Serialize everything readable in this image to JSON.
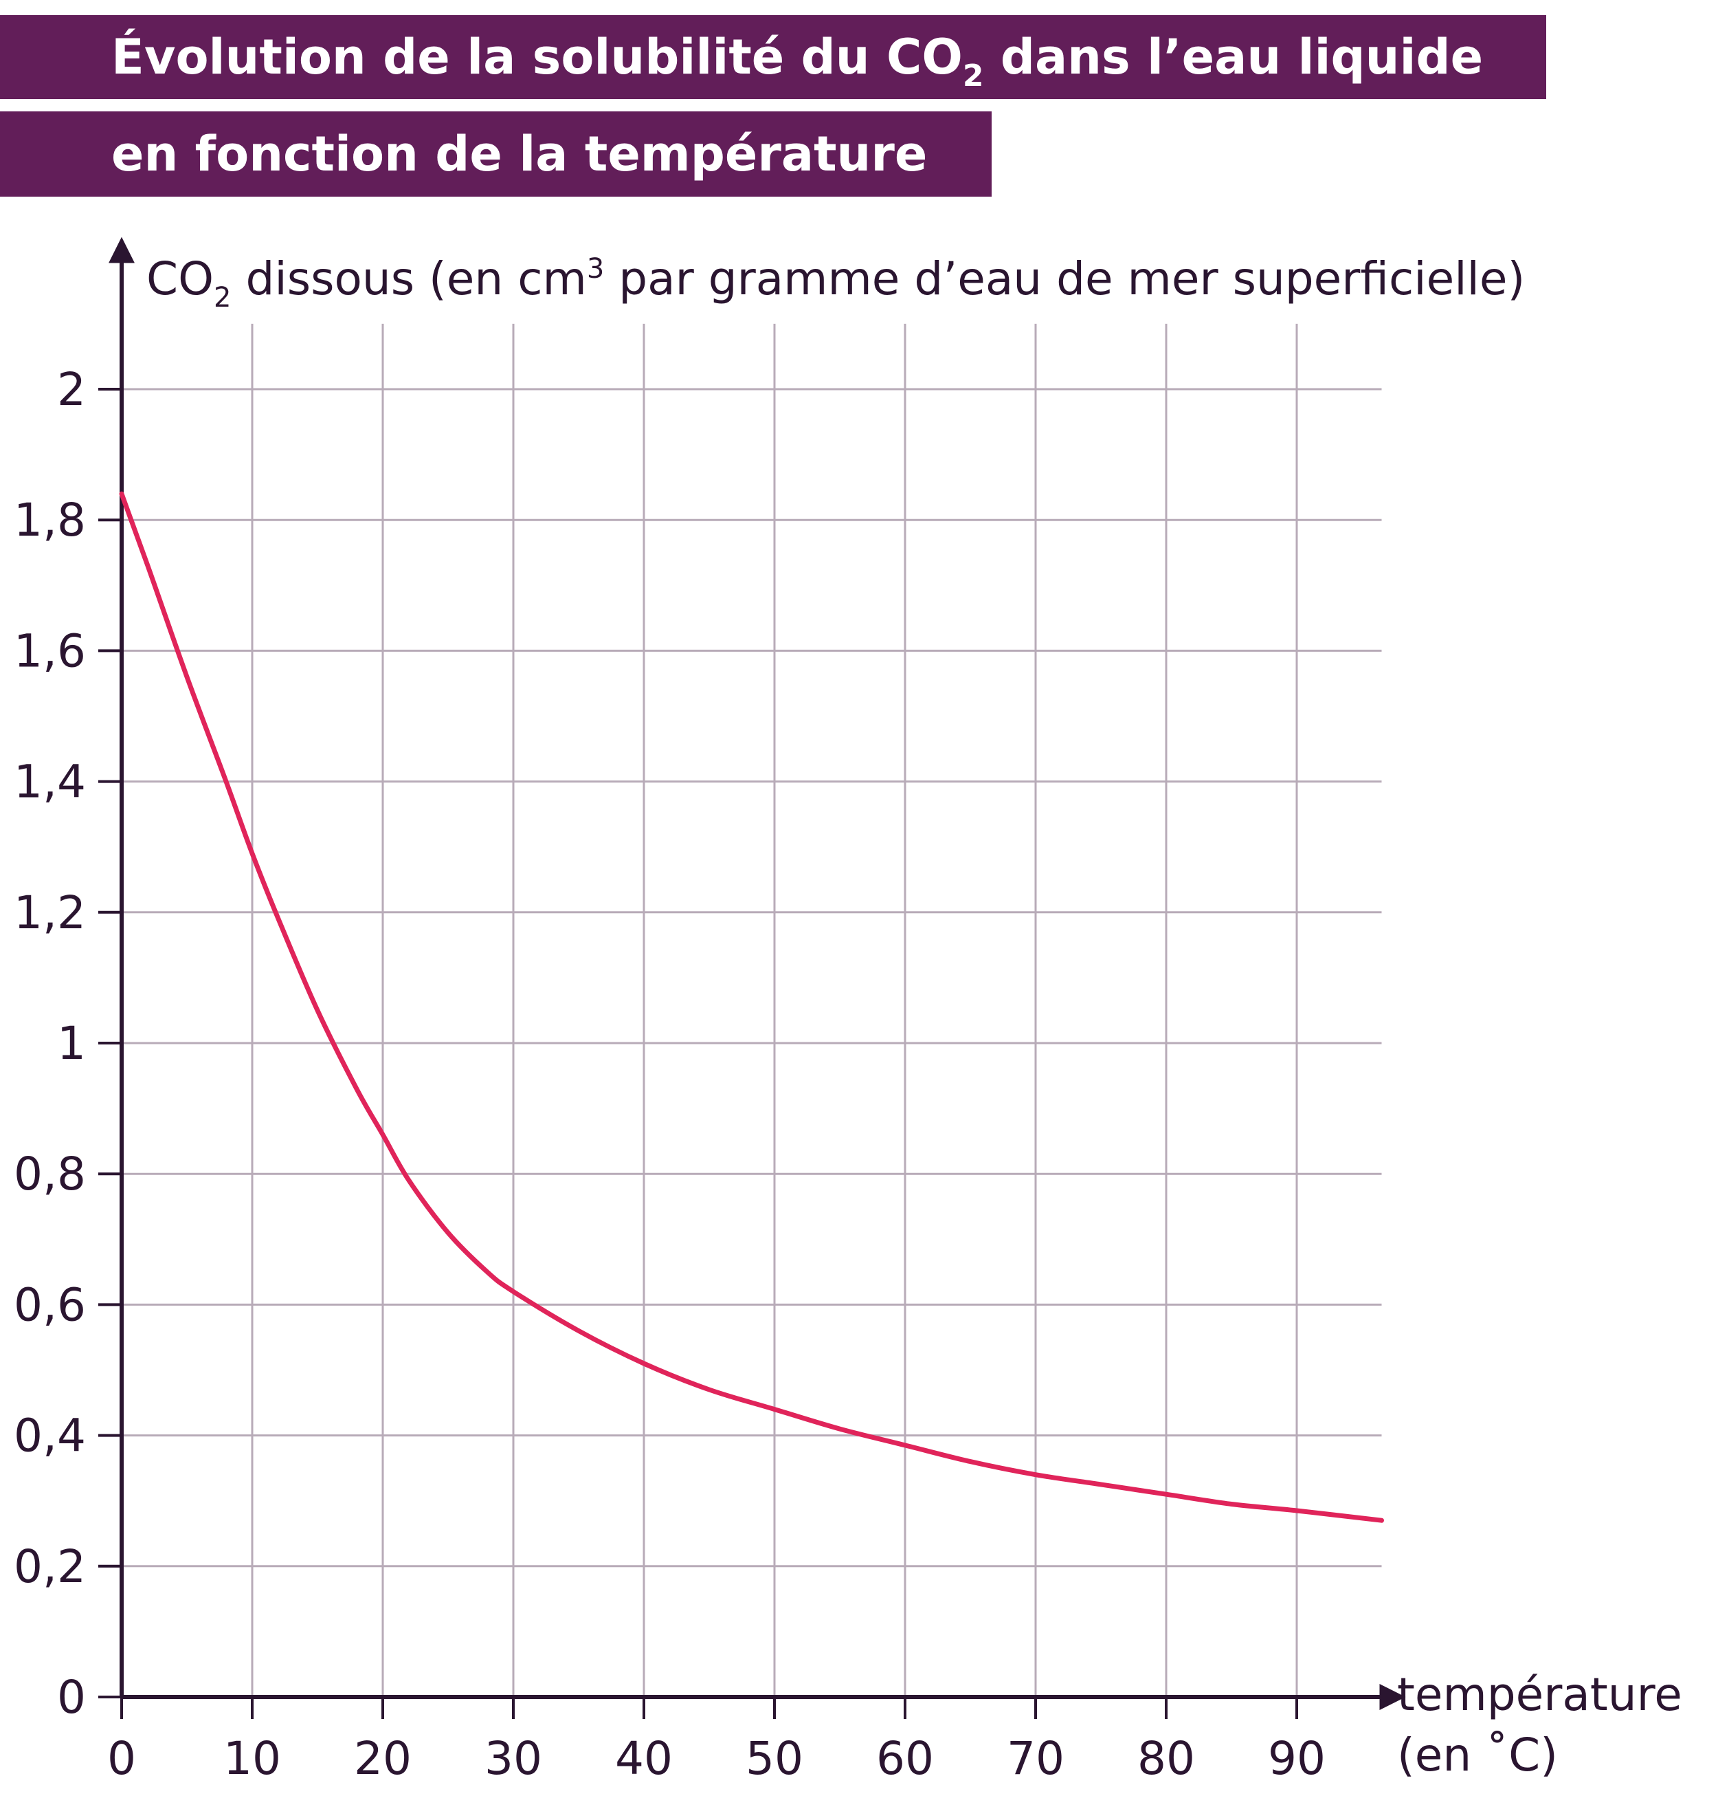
{
  "title": {
    "line1_pre": "Évolution de la solubilité du CO",
    "line1_sub": "2",
    "line1_post": " dans l’eau liquide",
    "line2": "en fonction de la température"
  },
  "colors": {
    "title_bg": "#621e59",
    "title_text": "#ffffff",
    "axis": "#2a1530",
    "grid": "#b8abb8",
    "curve": "#e0245a"
  },
  "chart_data": {
    "type": "line",
    "y_label": {
      "pre": "CO",
      "sub": "2",
      "mid": " dissous (en cm",
      "sup": "3",
      "post": " par gramme d’eau de mer superficielle)"
    },
    "x_label_line1": "température",
    "x_label_line2": "(en ˚C)",
    "x_ticks": [
      "0",
      "10",
      "20",
      "30",
      "40",
      "50",
      "60",
      "70",
      "80",
      "90"
    ],
    "x_tick_values": [
      0,
      10,
      20,
      30,
      40,
      50,
      60,
      70,
      80,
      90
    ],
    "y_ticks": [
      "0",
      "0,2",
      "0,4",
      "0,6",
      "0,8",
      "1",
      "1,2",
      "1,4",
      "1,6",
      "1,8",
      "2"
    ],
    "y_tick_values": [
      0,
      0.2,
      0.4,
      0.6,
      0.8,
      1.0,
      1.2,
      1.4,
      1.6,
      1.8,
      2.0
    ],
    "xlim": [
      0,
      96.5
    ],
    "ylim": [
      0,
      2.1
    ],
    "grid": true,
    "series": [
      {
        "x": [
          0,
          2,
          5,
          8,
          10,
          12,
          15,
          18,
          20,
          22,
          25,
          28,
          30,
          35,
          40,
          45,
          50,
          55,
          60,
          65,
          70,
          75,
          80,
          85,
          90,
          96.5
        ],
        "y": [
          1.84,
          1.73,
          1.56,
          1.4,
          1.29,
          1.19,
          1.05,
          0.93,
          0.86,
          0.79,
          0.71,
          0.65,
          0.62,
          0.56,
          0.51,
          0.47,
          0.44,
          0.41,
          0.385,
          0.36,
          0.34,
          0.325,
          0.31,
          0.295,
          0.285,
          0.27
        ]
      }
    ]
  }
}
